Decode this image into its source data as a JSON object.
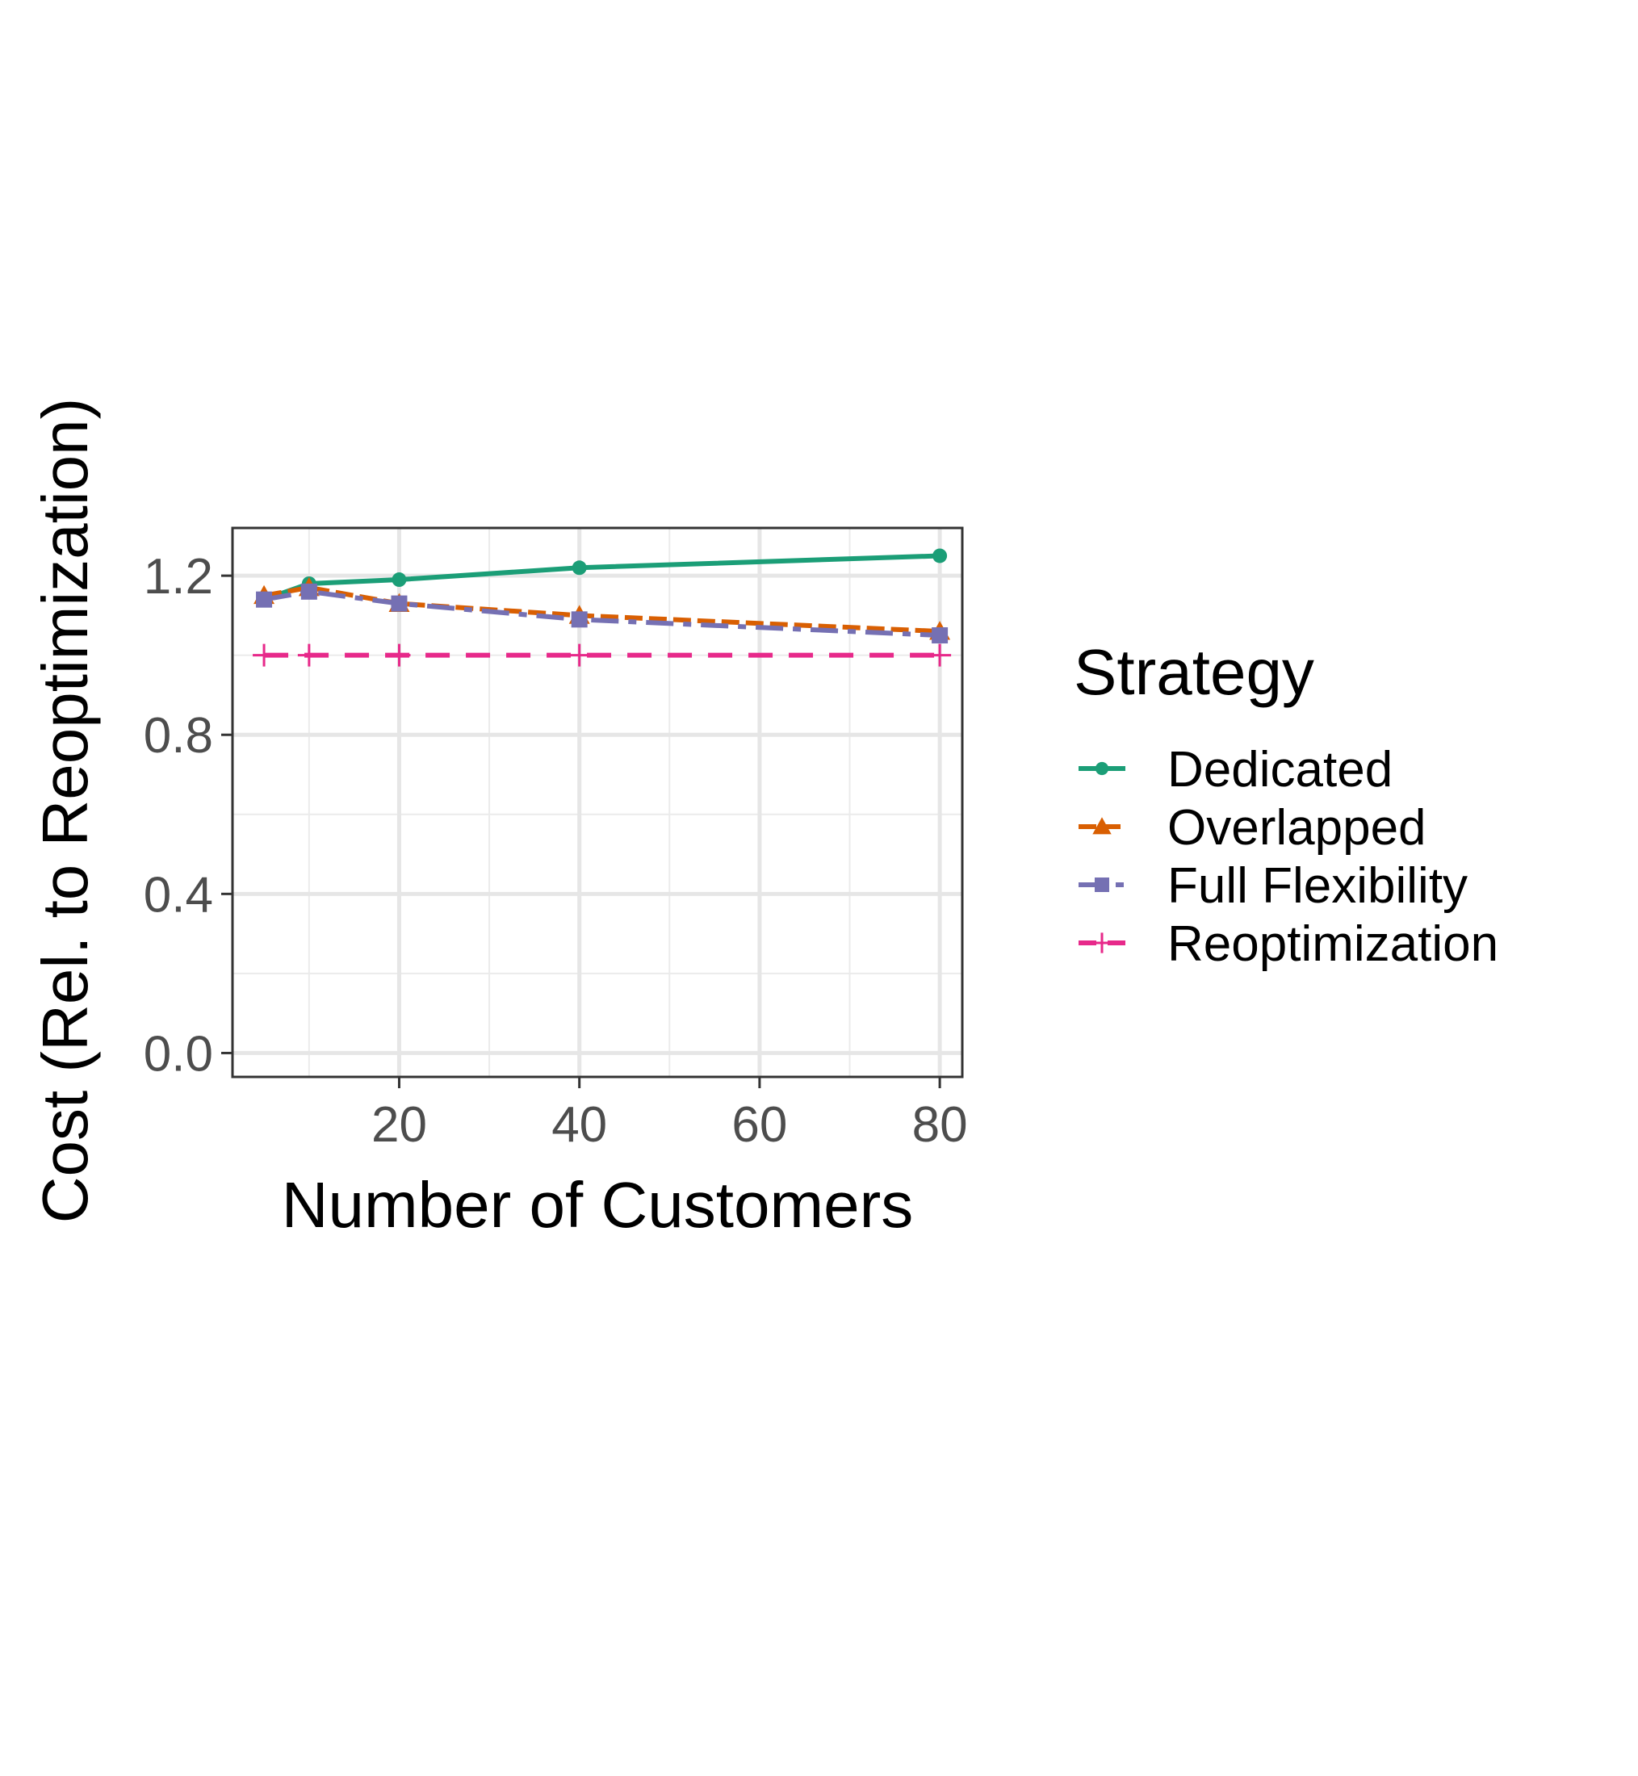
{
  "chart_data": {
    "type": "line",
    "title": "",
    "xlabel": "Number of Customers",
    "ylabel": "Cost (Rel. to Reoptimization)",
    "xlim": [
      1.5,
      82.5
    ],
    "ylim": [
      -0.06,
      1.32
    ],
    "x_ticks": [
      "20",
      "40",
      "60",
      "80"
    ],
    "x_tick_values": [
      20,
      40,
      60,
      80
    ],
    "y_ticks": [
      "0.0",
      "0.4",
      "0.8",
      "1.2"
    ],
    "y_tick_values": [
      0.0,
      0.4,
      0.8,
      1.2
    ],
    "x_minor_gridlines": [
      10,
      30,
      50,
      70
    ],
    "y_minor_gridlines": [
      0.2,
      0.6,
      1.0
    ],
    "grid": true,
    "legend_placement": "right",
    "legend_title": "Strategy",
    "x": [
      5,
      10,
      20,
      40,
      80
    ],
    "series": [
      {
        "name": "Dedicated",
        "values": [
          1.14,
          1.18,
          1.19,
          1.22,
          1.25
        ],
        "color": "#1b9e77",
        "marker": "circle",
        "dash": "solid"
      },
      {
        "name": "Overlapped",
        "values": [
          1.15,
          1.17,
          1.13,
          1.1,
          1.06
        ],
        "color": "#d95f02",
        "marker": "triangle",
        "dash": "short-dash"
      },
      {
        "name": "Full Flexibility",
        "values": [
          1.14,
          1.16,
          1.13,
          1.09,
          1.05
        ],
        "color": "#7570b3",
        "marker": "square",
        "dash": "long-dash"
      },
      {
        "name": "Reoptimization",
        "values": [
          1.0,
          1.0,
          1.0,
          1.0,
          1.0
        ],
        "color": "#e7298a",
        "marker": "plus",
        "dash": "dashed"
      }
    ]
  }
}
